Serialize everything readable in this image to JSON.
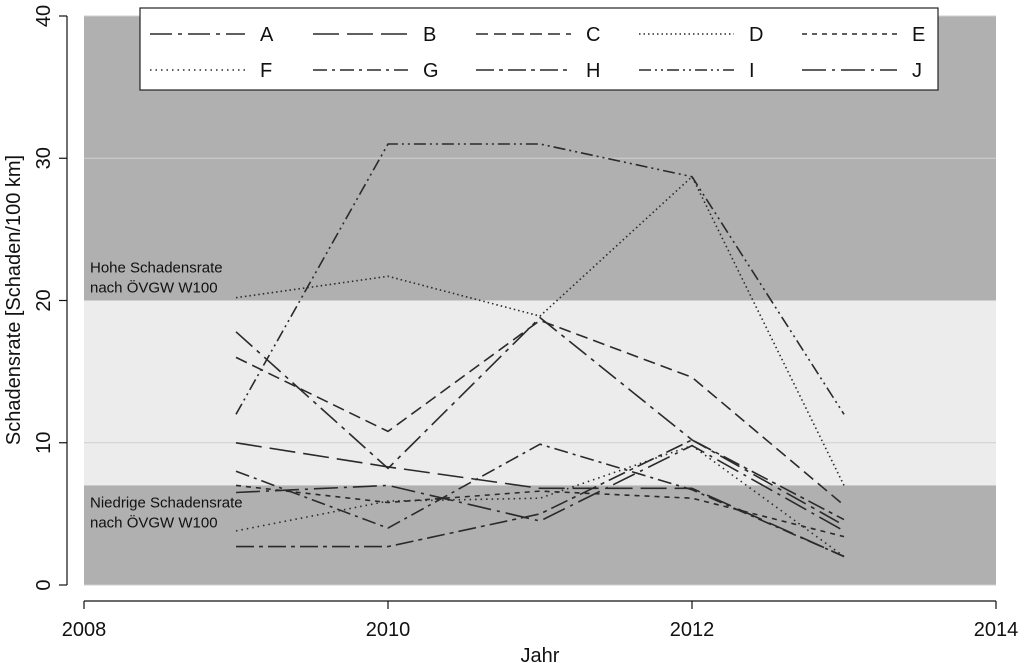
{
  "chart_data": {
    "type": "line",
    "xlabel": "Jahr",
    "ylabel": "Schadensrate [Schaden/100 km]",
    "xlim": [
      2008,
      2014
    ],
    "ylim": [
      0,
      40
    ],
    "xticks": [
      "2008",
      "2010",
      "2012",
      "2014"
    ],
    "yticks": [
      "0",
      "10",
      "20",
      "30",
      "40"
    ],
    "grid": false,
    "legend_position": "top",
    "x": [
      2009,
      2010,
      2011,
      2012,
      2013
    ],
    "bands": [
      {
        "from": 20,
        "to": 40,
        "label_lines": [
          "Hohe Schadensrate",
          "nach ÖVGW W100"
        ],
        "color": "#b0b0b0"
      },
      {
        "from": 7,
        "to": 20,
        "label_lines": [],
        "color": "#ececec"
      },
      {
        "from": 0,
        "to": 7,
        "label_lines": [
          "Niedrige Schadensrate",
          "nach ÖVGW W100"
        ],
        "color": "#b0b0b0"
      }
    ],
    "series": [
      {
        "name": "A",
        "dash": "22 6 4 6",
        "values": [
          17.8,
          8.2,
          18.8,
          10.2,
          4.2
        ]
      },
      {
        "name": "B",
        "dash": "26 8",
        "values": [
          10.0,
          8.3,
          6.8,
          6.8,
          2.0
        ]
      },
      {
        "name": "C",
        "dash": "12 6",
        "values": [
          16.0,
          10.8,
          18.6,
          14.6,
          5.6
        ]
      },
      {
        "name": "D",
        "dash": "1.5 3",
        "values": [
          20.2,
          21.7,
          18.9,
          28.7,
          7.0
        ]
      },
      {
        "name": "E",
        "dash": "5 5",
        "values": [
          7.0,
          5.8,
          6.6,
          6.1,
          3.4
        ]
      },
      {
        "name": "F",
        "dash": "1.5 4",
        "values": [
          3.8,
          5.9,
          6.1,
          9.8,
          2.0
        ]
      },
      {
        "name": "G",
        "dash": "14 5 3 5",
        "values": [
          8.0,
          4.0,
          9.9,
          6.7,
          2.0
        ]
      },
      {
        "name": "H",
        "dash": "18 5 4 5",
        "values": [
          2.7,
          2.7,
          5.0,
          10.2,
          4.6
        ]
      },
      {
        "name": "I",
        "dash": "12 4 2 4 2 4",
        "values": [
          12.0,
          31.0,
          31.0,
          28.7,
          12.0
        ]
      },
      {
        "name": "J",
        "dash": "24 6 3 6",
        "values": [
          6.5,
          7.0,
          4.5,
          9.8,
          3.8
        ]
      }
    ]
  }
}
